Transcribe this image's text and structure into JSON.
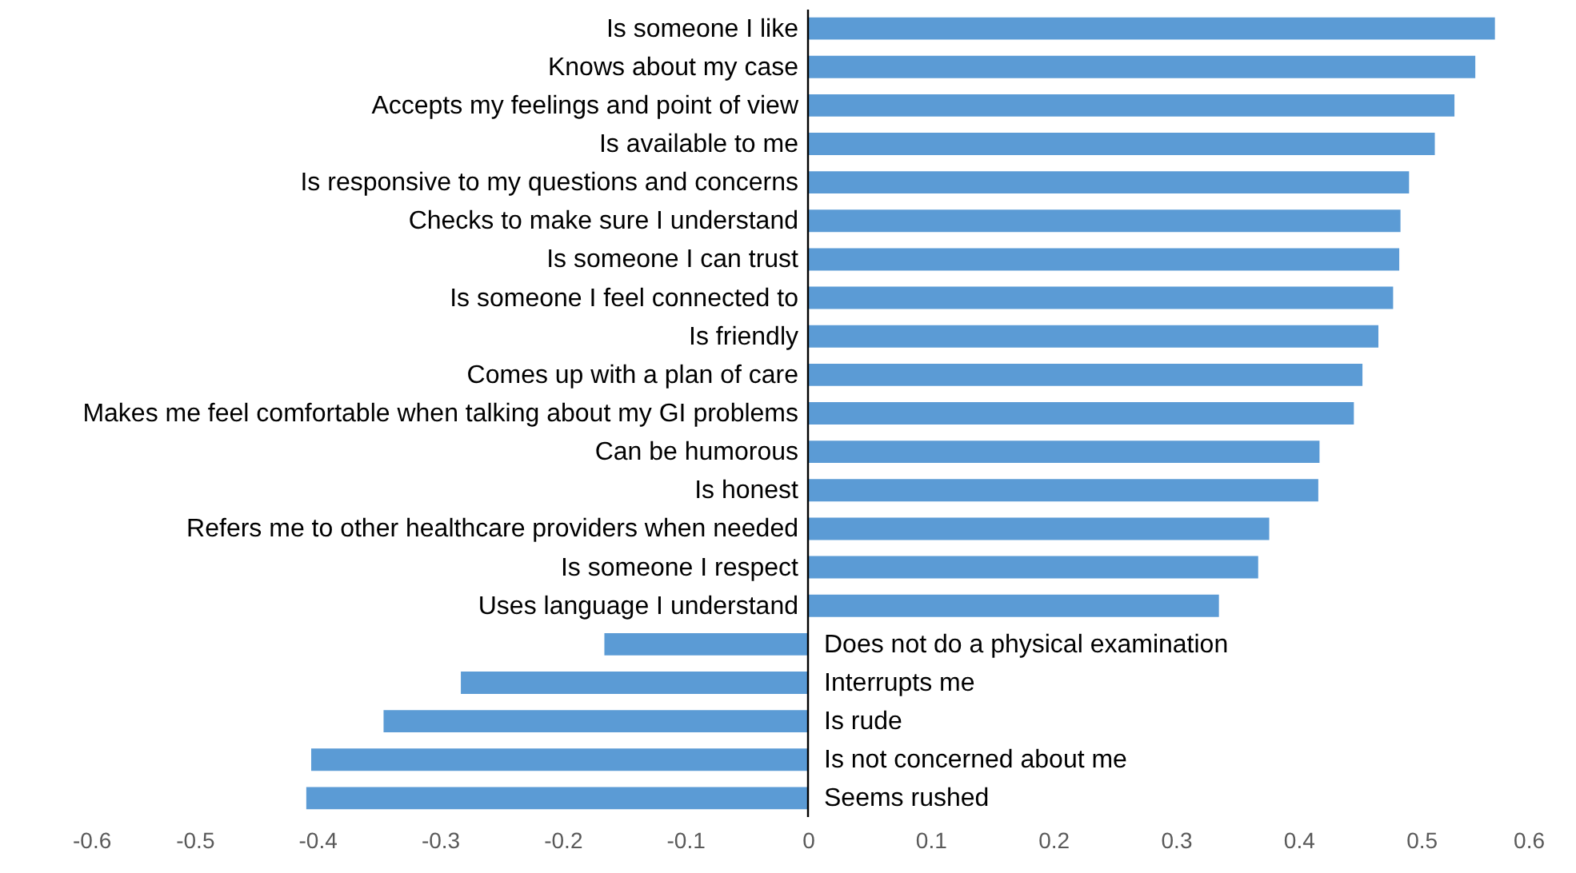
{
  "chart_data": {
    "type": "bar",
    "orientation": "horizontal",
    "categories": [
      "Is someone I like",
      "Knows about my case",
      "Accepts my feelings and point of view",
      "Is available to me",
      "Is responsive to my questions and concerns",
      "Checks to make sure I understand",
      "Is someone I can trust",
      "Is someone I feel connected to",
      "Is friendly",
      "Comes up with a plan of care",
      "Makes me feel comfortable when talking about my GI problems",
      "Can be humorous",
      "Is honest",
      "Refers me to other healthcare providers when needed",
      "Is someone I respect",
      "Uses language I understand",
      "Does not do a physical examination",
      "Interrupts me",
      "Is rude",
      "Is not concerned about me",
      "Seems rushed"
    ],
    "values": [
      0.56,
      0.544,
      0.527,
      0.511,
      0.49,
      0.483,
      0.482,
      0.477,
      0.465,
      0.452,
      0.445,
      0.417,
      0.416,
      0.376,
      0.367,
      0.335,
      -0.166,
      -0.283,
      -0.346,
      -0.405,
      -0.409
    ],
    "color": "#5b9bd5",
    "xlim": [
      -0.6,
      0.6
    ],
    "xticks": [
      -0.6,
      -0.5,
      -0.4,
      -0.3,
      -0.2,
      -0.1,
      0,
      0.1,
      0.2,
      0.3,
      0.4,
      0.5,
      0.6
    ],
    "grid": false,
    "tick_labels": "x"
  }
}
